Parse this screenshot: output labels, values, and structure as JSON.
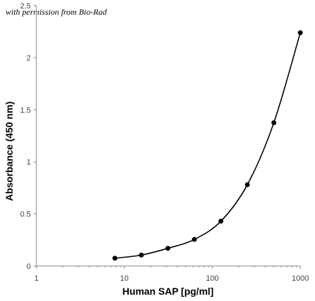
{
  "chart_data": {
    "type": "scatter",
    "title": "",
    "annotation": "with permission from Bio-Rad",
    "xlabel": "Human SAP [pg/ml]",
    "ylabel": "Absorbance (450 nm)",
    "xscale": "log",
    "xlim": [
      1,
      1000
    ],
    "ylim": [
      0,
      2.5
    ],
    "xticks": [
      "1",
      "10",
      "100",
      "1000"
    ],
    "yticks": [
      "0",
      "0.5",
      "1",
      "1.5",
      "2",
      "2.5"
    ],
    "grid": false,
    "legend": "none",
    "fit_curve": true,
    "marker_color": "#000000",
    "line_color": "#000000",
    "axis_color": "#868686",
    "series": [
      {
        "x": [
          7.8,
          15.6,
          31.25,
          62.5,
          125,
          250,
          500,
          1000
        ],
        "y": [
          0.075,
          0.105,
          0.17,
          0.255,
          0.43,
          0.78,
          1.375,
          2.24
        ]
      }
    ]
  }
}
